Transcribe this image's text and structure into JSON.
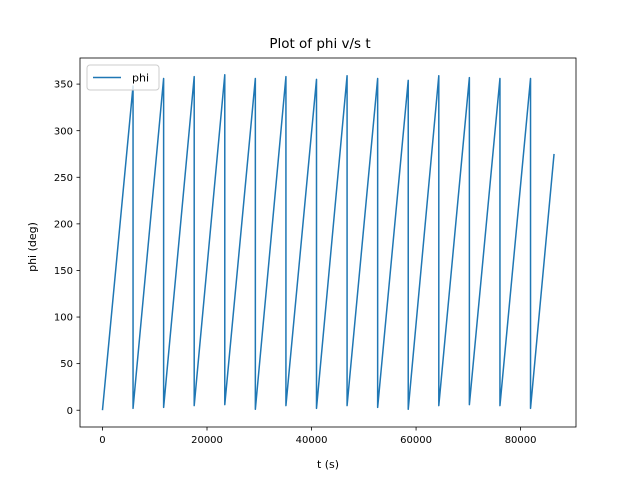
{
  "chart_data": {
    "type": "line",
    "title": "Plot of phi v/s t",
    "xlabel": "t (s)",
    "ylabel": "phi (deg)",
    "xlim": [
      -4300,
      90600
    ],
    "ylim": [
      -18,
      378
    ],
    "xticks": [
      0,
      20000,
      40000,
      60000,
      80000
    ],
    "xtick_labels": [
      "0",
      "20000",
      "40000",
      "60000",
      "80000"
    ],
    "yticks": [
      0,
      50,
      100,
      150,
      200,
      250,
      300,
      350
    ],
    "ytick_labels": [
      "0",
      "50",
      "100",
      "150",
      "200",
      "250",
      "300",
      "350"
    ],
    "grid": false,
    "legend_position": "top-left",
    "series": [
      {
        "name": "phi",
        "color": "#1f77b4",
        "x": [
          0,
          5850,
          5850,
          11700,
          11700,
          17550,
          17550,
          23400,
          23400,
          29250,
          29250,
          35100,
          35100,
          40950,
          40950,
          46800,
          46800,
          52650,
          52650,
          58500,
          58500,
          64350,
          64350,
          70200,
          70200,
          76050,
          76050,
          81900,
          81900,
          86400
        ],
        "values": [
          0,
          348,
          2,
          356,
          3,
          358,
          5,
          360,
          6,
          356,
          1,
          358,
          5,
          355,
          2,
          359,
          5,
          356,
          3,
          354,
          1,
          359,
          5,
          357,
          6,
          356,
          5,
          356,
          2,
          275
        ]
      }
    ]
  }
}
